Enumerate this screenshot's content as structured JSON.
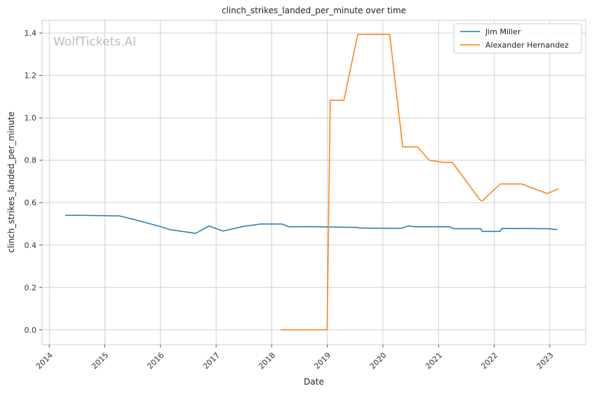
{
  "chart_data": {
    "type": "line",
    "title": "clinch_strikes_landed_per_minute over time",
    "xlabel": "Date",
    "ylabel": "clinch_strikes_landed_per_minute",
    "watermark": "WolfTickets.AI",
    "xlim": [
      "2013-11-15",
      "2023-08-25"
    ],
    "ylim": [
      -0.07,
      1.46
    ],
    "x_ticks": [
      "2014",
      "2015",
      "2016",
      "2017",
      "2018",
      "2019",
      "2020",
      "2021",
      "2022",
      "2023"
    ],
    "y_ticks": [
      0.0,
      0.2,
      0.4,
      0.6,
      0.8,
      1.0,
      1.2,
      1.4
    ],
    "y_tick_labels": [
      "0.0",
      "0.2",
      "0.4",
      "0.6",
      "0.8",
      "1.0",
      "1.2",
      "1.4"
    ],
    "grid": true,
    "legend_position": "top-right",
    "series": [
      {
        "name": "Jim Miller",
        "color": "#1f77b4",
        "points": [
          [
            "2014-04-15",
            0.54
          ],
          [
            "2014-09-01",
            0.54
          ],
          [
            "2015-04-10",
            0.537
          ],
          [
            "2015-07-15",
            0.52
          ],
          [
            "2016-01-01",
            0.487
          ],
          [
            "2016-03-01",
            0.473
          ],
          [
            "2016-08-20",
            0.455
          ],
          [
            "2016-11-15",
            0.49
          ],
          [
            "2017-02-15",
            0.466
          ],
          [
            "2017-07-01",
            0.488
          ],
          [
            "2017-10-20",
            0.499
          ],
          [
            "2018-03-10",
            0.499
          ],
          [
            "2018-04-25",
            0.486
          ],
          [
            "2018-09-01",
            0.487
          ],
          [
            "2019-01-10",
            0.485
          ],
          [
            "2019-07-20",
            0.483
          ],
          [
            "2019-08-01",
            0.48
          ],
          [
            "2020-03-01",
            0.479
          ],
          [
            "2020-05-01",
            0.479
          ],
          [
            "2020-06-15",
            0.49
          ],
          [
            "2020-08-01",
            0.486
          ],
          [
            "2021-03-15",
            0.486
          ],
          [
            "2021-04-10",
            0.477
          ],
          [
            "2021-10-05",
            0.477
          ],
          [
            "2021-10-15",
            0.464
          ],
          [
            "2022-02-10",
            0.464
          ],
          [
            "2022-02-20",
            0.478
          ],
          [
            "2022-12-20",
            0.477
          ],
          [
            "2023-02-20",
            0.473
          ]
        ]
      },
      {
        "name": "Alexander Hernandez",
        "color": "#ff7f0e",
        "points": [
          [
            "2018-03-01",
            0.0
          ],
          [
            "2018-12-10",
            0.0
          ],
          [
            "2018-12-31",
            0.0
          ],
          [
            "2019-01-20",
            1.083
          ],
          [
            "2019-04-20",
            1.083
          ],
          [
            "2019-07-20",
            1.393
          ],
          [
            "2020-02-15",
            1.393
          ],
          [
            "2020-05-10",
            0.863
          ],
          [
            "2020-08-15",
            0.863
          ],
          [
            "2020-11-01",
            0.8
          ],
          [
            "2021-02-01",
            0.79
          ],
          [
            "2021-04-01",
            0.79
          ],
          [
            "2021-10-01",
            0.612
          ],
          [
            "2021-10-15",
            0.608
          ],
          [
            "2022-02-10",
            0.688
          ],
          [
            "2022-07-01",
            0.688
          ],
          [
            "2022-12-15",
            0.643
          ],
          [
            "2023-03-01",
            0.665
          ]
        ]
      }
    ]
  }
}
